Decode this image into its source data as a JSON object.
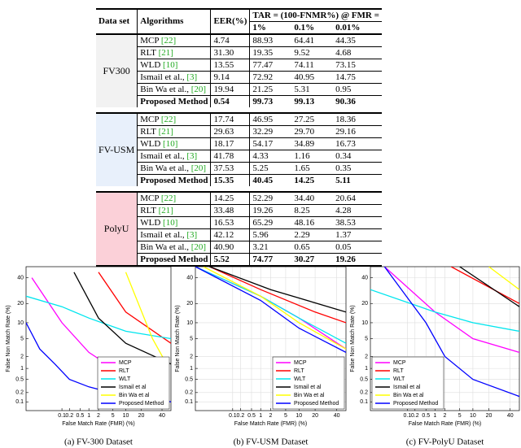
{
  "table": {
    "header": [
      "Data set",
      "Algorithms",
      "EER(%)",
      "TAR = (100-FNMR%) @ FMR ="
    ],
    "subheader": [
      "1%",
      "0.1%",
      "0.01%"
    ],
    "groups": [
      {
        "dataset": "FV300",
        "rows": [
          {
            "algorithm": "MCP",
            "ref": "[22]",
            "eer": "4.74",
            "tar": [
              "88.93",
              "64.41",
              "44.35"
            ]
          },
          {
            "algorithm": "RLT",
            "ref": "[21]",
            "eer": "31.30",
            "tar": [
              "19.35",
              "9.52",
              "4.68"
            ]
          },
          {
            "algorithm": "WLD",
            "ref": "[10]",
            "eer": "13.55",
            "tar": [
              "77.47",
              "74.11",
              "73.15"
            ]
          },
          {
            "algorithm": "Ismail et al.,",
            "ref": "[3]",
            "eer": "9.14",
            "tar": [
              "72.92",
              "40.95",
              "14.75"
            ]
          },
          {
            "algorithm": "Bin Wa et al.,",
            "ref": "[20]",
            "eer": "19.94",
            "tar": [
              "21.25",
              "5.31",
              "0.95"
            ]
          },
          {
            "algorithm": "Proposed Method",
            "eer": "0.54",
            "tar": [
              "99.73",
              "99.13",
              "90.36"
            ]
          }
        ]
      },
      {
        "dataset": "FV-USM",
        "rows": [
          {
            "algorithm": "MCP",
            "ref": "[22]",
            "eer": "17.74",
            "tar": [
              "46.95",
              "27.25",
              "18.36"
            ]
          },
          {
            "algorithm": "RLT",
            "ref": "[21]",
            "eer": "29.63",
            "tar": [
              "32.29",
              "29.70",
              "29.16"
            ]
          },
          {
            "algorithm": "WLD",
            "ref": "[10]",
            "eer": "18.17",
            "tar": [
              "54.17",
              "34.89",
              "16.73"
            ]
          },
          {
            "algorithm": "Ismail et al.,",
            "ref": "[3]",
            "eer": "41.78",
            "tar": [
              "4.33",
              "1.16",
              "0.34"
            ]
          },
          {
            "algorithm": "Bin Wa et al.,",
            "ref": "[20]",
            "eer": "37.53",
            "tar": [
              "5.25",
              "1.65",
              "0.35"
            ]
          },
          {
            "algorithm": "Proposed Method",
            "eer": "15.35",
            "tar": [
              "40.45",
              "14.25",
              "5.11"
            ]
          }
        ]
      },
      {
        "dataset": "PolyU",
        "rows": [
          {
            "algorithm": "MCP",
            "ref": "[22]",
            "eer": "14.25",
            "tar": [
              "52.29",
              "34.40",
              "20.64"
            ]
          },
          {
            "algorithm": "RLT",
            "ref": "[21]",
            "eer": "33.48",
            "tar": [
              "19.26",
              "8.25",
              "4.28"
            ]
          },
          {
            "algorithm": "WLD",
            "ref": "[10]",
            "eer": "16.53",
            "tar": [
              "65.29",
              "48.16",
              "38.53"
            ]
          },
          {
            "algorithm": "Ismail et al.,",
            "ref": "[3]",
            "eer": "42.12",
            "tar": [
              "5.96",
              "2.29",
              "1.37"
            ]
          },
          {
            "algorithm": "Bin Wa et al.,",
            "ref": "[20]",
            "eer": "40.90",
            "tar": [
              "3.21",
              "0.65",
              "0.05"
            ]
          },
          {
            "algorithm": "Proposed Method",
            "eer": "5.52",
            "tar": [
              "74.77",
              "30.27",
              "19.26"
            ]
          }
        ]
      }
    ],
    "group_colors": [
      "#f2f2f2",
      "#e8f0fb",
      "#fbd0d8"
    ]
  },
  "chart_data": [
    {
      "type": "line",
      "caption": "(a) FV-300 Dataset",
      "xlabel": "False Match Rate (FMR) (%)",
      "ylabel": "False Non Match Rate (%)",
      "scale": "probit",
      "grid": false,
      "legend": "lower right",
      "xlim": [
        0.002,
        50
      ],
      "ylim": [
        0.05,
        50
      ],
      "xticks": [
        0.1,
        0.2,
        0.5,
        1,
        2,
        5,
        10,
        20,
        40
      ],
      "yticks": [
        0.1,
        0.2,
        0.5,
        1,
        2,
        5,
        10,
        20,
        40
      ],
      "series": [
        {
          "name": "MCP",
          "color": "#ff00ff",
          "x": [
            0.004,
            0.1,
            1,
            10
          ],
          "values": [
            40,
            10,
            2.5,
            0.6
          ]
        },
        {
          "name": "RLT",
          "color": "#ff0000",
          "x": [
            2,
            10,
            50
          ],
          "values": [
            45,
            15,
            4
          ]
        },
        {
          "name": "WLT",
          "color": "#00e5ee",
          "x": [
            0.002,
            0.1,
            1,
            10,
            50
          ],
          "values": [
            25,
            18,
            12,
            7,
            5
          ]
        },
        {
          "name": "Ismail et al",
          "color": "#000000",
          "x": [
            0.3,
            2,
            10,
            50
          ],
          "values": [
            45,
            12,
            4,
            1.3
          ]
        },
        {
          "name": "Bin Wa et al",
          "color": "#ffff00",
          "x": [
            10,
            30,
            45
          ],
          "values": [
            45,
            5,
            1.3
          ]
        },
        {
          "name": "Proposed Method",
          "color": "#0000ff",
          "x": [
            0.002,
            0.01,
            0.05,
            0.2,
            1,
            10,
            50
          ],
          "values": [
            10,
            3,
            1.3,
            0.5,
            0.3,
            0.15,
            0.1
          ]
        }
      ]
    },
    {
      "type": "line",
      "caption": "(b) FV-USM Dataset",
      "xlabel": "False Match Rate (FMR) (%)",
      "ylabel": "False Non Match Rate (%)",
      "scale": "probit",
      "grid": true,
      "legend": "lower right",
      "xlim": [
        0.002,
        50
      ],
      "ylim": [
        0.05,
        50
      ],
      "xticks": [
        0.1,
        0.2,
        0.5,
        1,
        2,
        5,
        10,
        20,
        40
      ],
      "yticks": [
        0.1,
        0.2,
        0.5,
        1,
        2,
        5,
        10,
        20,
        40
      ],
      "series": [
        {
          "name": "MCP",
          "color": "#ff00ff",
          "x": [
            0.002,
            1,
            10,
            50
          ],
          "values": [
            50,
            25,
            12,
            3
          ]
        },
        {
          "name": "RLT",
          "color": "#ff0000",
          "x": [
            0.01,
            1,
            20,
            50
          ],
          "values": [
            50,
            30,
            15,
            10
          ]
        },
        {
          "name": "WLT",
          "color": "#00e5ee",
          "x": [
            0.002,
            1,
            10,
            50
          ],
          "values": [
            50,
            25,
            12,
            4
          ]
        },
        {
          "name": "Ismail et al",
          "color": "#000000",
          "x": [
            0.01,
            2,
            50
          ],
          "values": [
            50,
            30,
            15
          ]
        },
        {
          "name": "Bin Wa et al",
          "color": "#ffff00",
          "x": [
            0.005,
            1,
            10,
            50
          ],
          "values": [
            50,
            25,
            10,
            3
          ]
        },
        {
          "name": "Proposed Method",
          "color": "#0000ff",
          "x": [
            0.002,
            1,
            10,
            50
          ],
          "values": [
            50,
            22,
            8,
            2.5
          ]
        }
      ]
    },
    {
      "type": "line",
      "caption": "(c) FV-PolyU Dataset",
      "xlabel": "False Match Rate (FMR) (%)",
      "ylabel": "False Non Match Rate (%)",
      "scale": "probit",
      "grid": true,
      "legend": "lower left",
      "xlim": [
        0.002,
        50
      ],
      "ylim": [
        0.05,
        50
      ],
      "xticks": [
        0.1,
        0.2,
        0.5,
        1,
        2,
        5,
        10,
        20,
        40
      ],
      "yticks": [
        0.1,
        0.2,
        0.5,
        1,
        2,
        5,
        10,
        20,
        40
      ],
      "series": [
        {
          "name": "MCP",
          "color": "#ff00ff",
          "x": [
            0.01,
            1,
            10,
            50
          ],
          "values": [
            50,
            15,
            5,
            2.5
          ]
        },
        {
          "name": "RLT",
          "color": "#ff0000",
          "x": [
            3,
            50
          ],
          "values": [
            50,
            20
          ]
        },
        {
          "name": "WLT",
          "color": "#00e5ee",
          "x": [
            0.002,
            1,
            10,
            50
          ],
          "values": [
            30,
            15,
            10,
            7
          ]
        },
        {
          "name": "Ismail et al",
          "color": "#000000",
          "x": [
            5,
            50
          ],
          "values": [
            50,
            18
          ]
        },
        {
          "name": "Bin Wa et al",
          "color": "#ffff00",
          "x": [
            20,
            50
          ],
          "values": [
            50,
            30
          ]
        },
        {
          "name": "Proposed Method",
          "color": "#0000ff",
          "x": [
            0.01,
            0.5,
            2,
            10,
            50
          ],
          "values": [
            50,
            10,
            2,
            0.5,
            0.15
          ]
        }
      ]
    }
  ]
}
